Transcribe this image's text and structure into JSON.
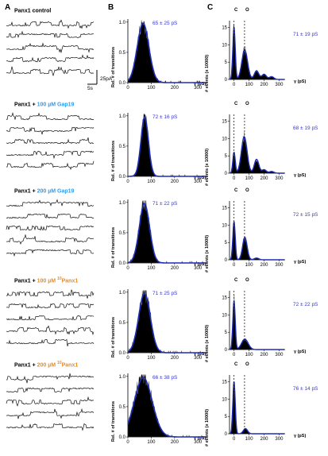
{
  "panel_labels": [
    "A",
    "B",
    "C"
  ],
  "scale_bar": {
    "current": "25pA",
    "time": "5s"
  },
  "rows": [
    {
      "prefix": "Panx1 control",
      "conc": "",
      "agent": "",
      "agent_sup": "",
      "agent_color": "#000000",
      "hist_stat": "65 ± 25 pS",
      "events_stat": "71 ± 19 pS"
    },
    {
      "prefix": "Panx1 + ",
      "conc": "100 µM ",
      "agent": "Gap19",
      "agent_sup": "",
      "agent_color": "#2a9df4",
      "hist_stat": "72 ± 16 pS",
      "events_stat": "68 ± 19 pS"
    },
    {
      "prefix": "Panx1 + ",
      "conc": "200 µM ",
      "agent": "Gap19",
      "agent_sup": "",
      "agent_color": "#2a9df4",
      "hist_stat": "71 ± 22 pS",
      "events_stat": "72 ± 15 pS"
    },
    {
      "prefix": "Panx1 + ",
      "conc": "100 µM ",
      "agent": "Panx1",
      "agent_sup": "10",
      "agent_color": "#f08a1a",
      "hist_stat": "71 ± 25 pS",
      "events_stat": "72 ± 22 pS"
    },
    {
      "prefix": "Panx1 + ",
      "conc": "200 µM ",
      "agent": "Panx1",
      "agent_sup": "10",
      "agent_color": "#f08a1a",
      "hist_stat": "66 ± 38 pS",
      "events_stat": "76 ± 14 pS"
    }
  ],
  "axis_text": {
    "hist_ylabel": "Rel. # of transitions",
    "events_ylabel": "# events (x 10000)",
    "xlabel": "γ (pS)",
    "closed": "C",
    "open": "O"
  },
  "chart_data": [
    {
      "type": "area",
      "panel": "B",
      "description_of_axes": "relative transition histogram",
      "xlabel": "γ (pS)",
      "ylabel": "Rel. # of transitions",
      "x_ticks": [
        0,
        100,
        200,
        300
      ],
      "y_ticks": [
        0.0,
        0.5,
        1.0
      ],
      "xlim": [
        0,
        340
      ],
      "ylim": [
        0,
        1.05
      ],
      "series": [
        {
          "gauss_mean": 65,
          "gauss_sd": 25,
          "peak": 1.0
        },
        {
          "gauss_mean": 72,
          "gauss_sd": 16,
          "peak": 1.0
        },
        {
          "gauss_mean": 71,
          "gauss_sd": 22,
          "peak": 1.0
        },
        {
          "gauss_mean": 71,
          "gauss_sd": 25,
          "peak": 1.0
        },
        {
          "gauss_mean": 66,
          "gauss_sd": 38,
          "peak": 1.0
        }
      ]
    },
    {
      "type": "area",
      "panel": "C",
      "xlabel": "γ (pS)",
      "ylabel": "# events (x 10000)",
      "x_ticks": [
        0,
        100,
        200,
        300
      ],
      "y_ticks": [
        0,
        5,
        10,
        15
      ],
      "xlim": [
        -30,
        340
      ],
      "ylim": [
        0,
        17
      ],
      "closed_x": 0,
      "open_x": 70,
      "series": [
        {
          "closed_peak": 15,
          "open_mean": 71,
          "open_sd": 19,
          "open_peak": 8.5,
          "extra_peaks": [
            [
              150,
              2.5
            ],
            [
              200,
              1.5
            ],
            [
              250,
              0.8
            ]
          ]
        },
        {
          "closed_peak": 6,
          "open_mean": 68,
          "open_sd": 19,
          "open_peak": 10.5,
          "extra_peaks": [
            [
              150,
              4
            ],
            [
              200,
              1
            ],
            [
              250,
              0.5
            ]
          ]
        },
        {
          "closed_peak": 11,
          "open_mean": 72,
          "open_sd": 15,
          "open_peak": 6.5,
          "extra_peaks": [
            [
              150,
              0.5
            ]
          ]
        },
        {
          "closed_peak": 14,
          "open_mean": 72,
          "open_sd": 22,
          "open_peak": 3,
          "extra_peaks": []
        },
        {
          "closed_peak": 15,
          "open_mean": 76,
          "open_sd": 14,
          "open_peak": 1.5,
          "extra_peaks": []
        }
      ]
    }
  ]
}
